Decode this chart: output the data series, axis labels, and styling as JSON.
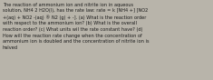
{
  "text": "The reaction of ammonium ion and nitrite ion in aqueous\nsolution, NH4 2 H2O(l), has the rate law: rate = k [NH4 +] [NO2\n+(aq) + NO2 -(aq) ® N2 (g) + -]. (a) What is the reaction order\nwith respect to the ammonium ion? (b) What is the overall\nreaction order? (c) What units wil the rate constant have? (d)\nHow will the reaction rate change when the concentration of\nammonium ion is doubled and the concentration of nitrite ion is\nhalved",
  "bg_color": "#b8b4aa",
  "text_color": "#1a1a1a",
  "fontsize": 3.6,
  "figwidth": 2.35,
  "figheight": 0.88,
  "dpi": 100
}
